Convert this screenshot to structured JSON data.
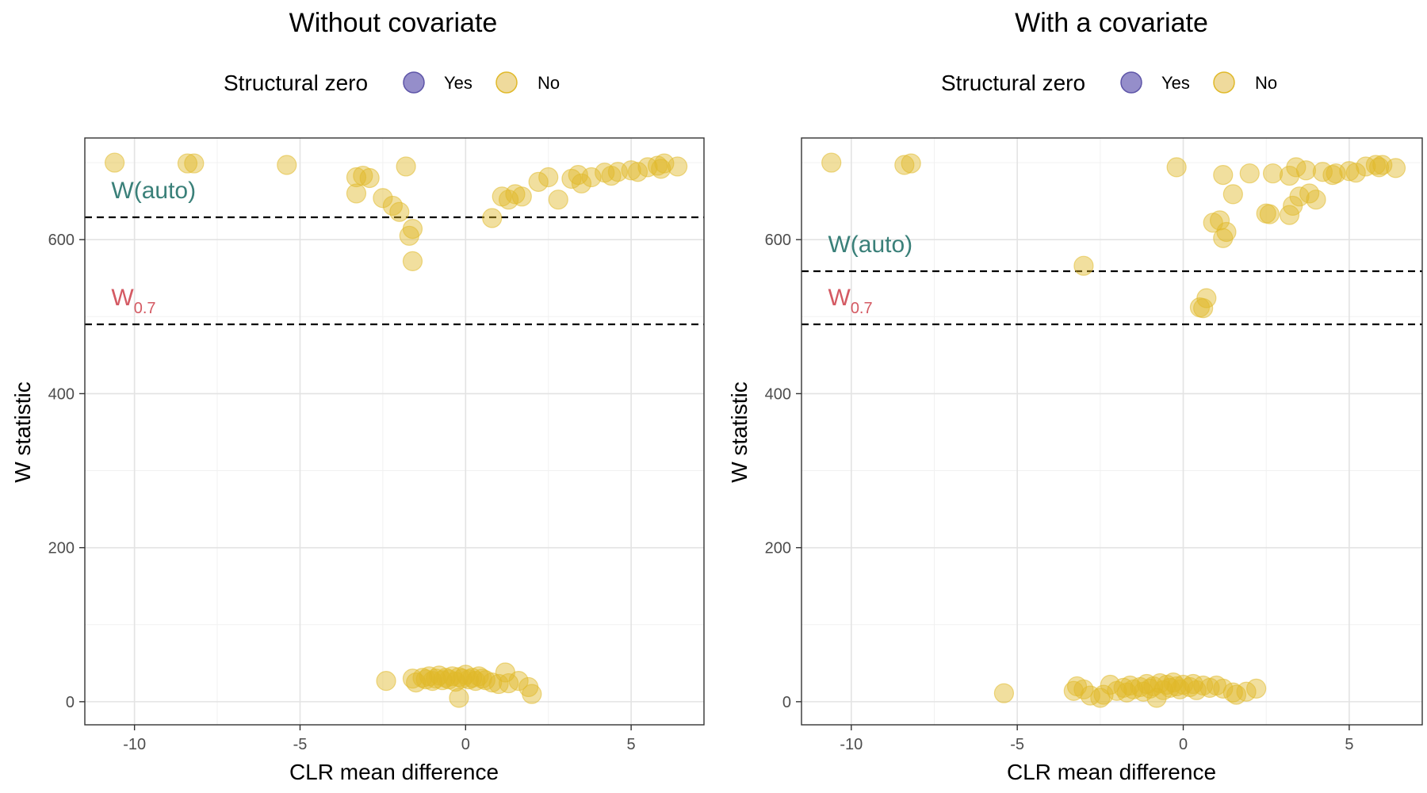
{
  "legend": {
    "title": "Structural zero",
    "items": [
      {
        "label": "Yes",
        "color": "#7b72bd"
      },
      {
        "label": "No",
        "color": "#e4c25a"
      }
    ]
  },
  "colors": {
    "point": "#e0b929",
    "w_auto": "#3a8079",
    "w_07": "#d45a63"
  },
  "chart_data": [
    {
      "type": "scatter",
      "title": "Without covariate",
      "xlabel": "CLR mean difference",
      "ylabel": "W statistic",
      "xlim": [
        -11.5,
        7.2
      ],
      "ylim": [
        -30,
        732
      ],
      "xticks": [
        -10,
        -5,
        0,
        5
      ],
      "xtick_labels": [
        "-10",
        "-5",
        "0",
        "5"
      ],
      "yticks": [
        0,
        200,
        400,
        600
      ],
      "ytick_labels": [
        "0",
        "200",
        "400",
        "600"
      ],
      "grid": true,
      "hlines": [
        {
          "label": "W(auto)",
          "value": 629,
          "color": "w_auto"
        },
        {
          "label": "W",
          "subscript": "0.7",
          "value": 490,
          "color": "w_07"
        }
      ],
      "series": [
        {
          "structural_zero": "No",
          "points": [
            [
              -10.6,
              700
            ],
            [
              -8.4,
              699
            ],
            [
              -8.2,
              699
            ],
            [
              -5.4,
              697
            ],
            [
              -3.3,
              681
            ],
            [
              -3.1,
              683
            ],
            [
              -2.9,
              680
            ],
            [
              -3.3,
              660
            ],
            [
              -2.5,
              654
            ],
            [
              -2.2,
              644
            ],
            [
              -2.0,
              636
            ],
            [
              -1.8,
              695
            ],
            [
              -1.7,
              605
            ],
            [
              -1.6,
              614
            ],
            [
              -1.6,
              572
            ],
            [
              0.8,
              628
            ],
            [
              1.1,
              656
            ],
            [
              1.3,
              652
            ],
            [
              1.5,
              659
            ],
            [
              1.7,
              656
            ],
            [
              2.2,
              675
            ],
            [
              2.5,
              681
            ],
            [
              2.8,
              652
            ],
            [
              3.2,
              679
            ],
            [
              3.5,
              673
            ],
            [
              3.4,
              684
            ],
            [
              3.8,
              681
            ],
            [
              4.2,
              687
            ],
            [
              4.4,
              683
            ],
            [
              4.6,
              688
            ],
            [
              5.0,
              690
            ],
            [
              5.2,
              688
            ],
            [
              5.5,
              694
            ],
            [
              5.8,
              696
            ],
            [
              5.9,
              692
            ],
            [
              6.0,
              699
            ],
            [
              6.4,
              695
            ],
            [
              -2.4,
              27
            ],
            [
              -1.6,
              30
            ],
            [
              -1.5,
              25
            ],
            [
              -1.3,
              31
            ],
            [
              -1.2,
              29
            ],
            [
              -1.1,
              33
            ],
            [
              -1.0,
              27
            ],
            [
              -0.9,
              30
            ],
            [
              -0.8,
              34
            ],
            [
              -0.7,
              28
            ],
            [
              -0.6,
              31
            ],
            [
              -0.5,
              29
            ],
            [
              -0.4,
              33
            ],
            [
              -0.3,
              26
            ],
            [
              -0.2,
              32
            ],
            [
              -0.1,
              30
            ],
            [
              0.0,
              35
            ],
            [
              0.1,
              29
            ],
            [
              0.2,
              31
            ],
            [
              0.3,
              27
            ],
            [
              0.4,
              33
            ],
            [
              0.5,
              30
            ],
            [
              0.6,
              28
            ],
            [
              0.8,
              25
            ],
            [
              1.0,
              23
            ],
            [
              1.2,
              38
            ],
            [
              1.3,
              24
            ],
            [
              1.6,
              27
            ],
            [
              1.9,
              19
            ],
            [
              2.0,
              10
            ],
            [
              -0.2,
              5
            ]
          ]
        }
      ]
    },
    {
      "type": "scatter",
      "title": "With a covariate",
      "xlabel": "CLR mean difference",
      "ylabel": "W statistic",
      "xlim": [
        -11.5,
        7.2
      ],
      "ylim": [
        -30,
        732
      ],
      "xticks": [
        -10,
        -5,
        0,
        5
      ],
      "xtick_labels": [
        "-10",
        "-5",
        "0",
        "5"
      ],
      "yticks": [
        0,
        200,
        400,
        600
      ],
      "ytick_labels": [
        "0",
        "200",
        "400",
        "600"
      ],
      "grid": true,
      "hlines": [
        {
          "label": "W(auto)",
          "value": 559,
          "color": "w_auto"
        },
        {
          "label": "W",
          "subscript": "0.7",
          "value": 490,
          "color": "w_07"
        }
      ],
      "series": [
        {
          "structural_zero": "No",
          "points": [
            [
              -10.6,
              700
            ],
            [
              -8.4,
              697
            ],
            [
              -8.2,
              699
            ],
            [
              -3.0,
              566
            ],
            [
              -0.2,
              694
            ],
            [
              0.5,
              512
            ],
            [
              0.6,
              511
            ],
            [
              0.7,
              524
            ],
            [
              0.9,
              622
            ],
            [
              1.1,
              625
            ],
            [
              1.2,
              684
            ],
            [
              1.2,
              602
            ],
            [
              1.3,
              610
            ],
            [
              1.5,
              659
            ],
            [
              2.0,
              686
            ],
            [
              2.5,
              634
            ],
            [
              2.6,
              633
            ],
            [
              2.7,
              686
            ],
            [
              3.2,
              683
            ],
            [
              3.2,
              632
            ],
            [
              3.3,
              644
            ],
            [
              3.4,
              694
            ],
            [
              3.5,
              656
            ],
            [
              3.7,
              690
            ],
            [
              3.8,
              660
            ],
            [
              4.0,
              652
            ],
            [
              4.2,
              688
            ],
            [
              4.5,
              684
            ],
            [
              4.6,
              686
            ],
            [
              5.0,
              689
            ],
            [
              5.2,
              687
            ],
            [
              5.5,
              695
            ],
            [
              5.8,
              697
            ],
            [
              5.9,
              694
            ],
            [
              6.0,
              697
            ],
            [
              6.4,
              693
            ],
            [
              -5.4,
              11
            ],
            [
              -3.3,
              14
            ],
            [
              -3.2,
              20
            ],
            [
              -3.0,
              16
            ],
            [
              -2.8,
              8
            ],
            [
              -2.5,
              5
            ],
            [
              -2.4,
              9
            ],
            [
              -2.2,
              22
            ],
            [
              -2.0,
              14
            ],
            [
              -1.8,
              18
            ],
            [
              -1.7,
              12
            ],
            [
              -1.6,
              21
            ],
            [
              -1.5,
              16
            ],
            [
              -1.3,
              19
            ],
            [
              -1.2,
              13
            ],
            [
              -1.1,
              23
            ],
            [
              -1.0,
              17
            ],
            [
              -0.9,
              20
            ],
            [
              -0.8,
              5
            ],
            [
              -0.7,
              24
            ],
            [
              -0.6,
              15
            ],
            [
              -0.5,
              22
            ],
            [
              -0.4,
              18
            ],
            [
              -0.3,
              25
            ],
            [
              -0.2,
              20
            ],
            [
              -0.1,
              16
            ],
            [
              0.0,
              22
            ],
            [
              0.2,
              19
            ],
            [
              0.3,
              23
            ],
            [
              0.4,
              15
            ],
            [
              0.6,
              21
            ],
            [
              0.8,
              18
            ],
            [
              1.0,
              21
            ],
            [
              1.2,
              17
            ],
            [
              1.5,
              12
            ],
            [
              1.6,
              9
            ],
            [
              1.9,
              13
            ],
            [
              2.2,
              17
            ]
          ]
        }
      ]
    }
  ]
}
